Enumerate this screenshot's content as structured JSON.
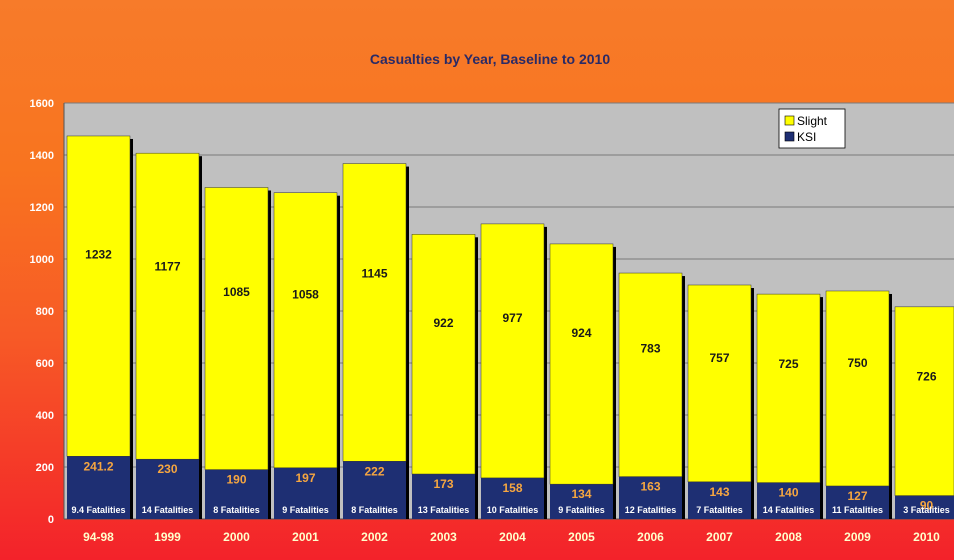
{
  "chart_data": {
    "type": "bar",
    "stacked": true,
    "title": "Casualties by Year, Baseline to 2010",
    "xlabel": "",
    "ylabel": "",
    "ylim": [
      0,
      1600
    ],
    "yticks": [
      0,
      200,
      400,
      600,
      800,
      1000,
      1200,
      1400,
      1600
    ],
    "grid": true,
    "legend_position": "top-right",
    "categories": [
      "94-98",
      "1999",
      "2000",
      "2001",
      "2002",
      "2003",
      "2004",
      "2005",
      "2006",
      "2007",
      "2008",
      "2009",
      "2010"
    ],
    "series": [
      {
        "name": "KSI",
        "color": "#1e2f73",
        "values": [
          241.2,
          230,
          190,
          197,
          222,
          173,
          158,
          134,
          163,
          143,
          140,
          127,
          90
        ],
        "labels": [
          "241.2",
          "230",
          "190",
          "197",
          "222",
          "173",
          "158",
          "134",
          "163",
          "143",
          "140",
          "127",
          "90"
        ]
      },
      {
        "name": "Slight",
        "color": "#ffff00",
        "values": [
          1232,
          1177,
          1085,
          1058,
          1145,
          922,
          977,
          924,
          783,
          757,
          725,
          750,
          726
        ],
        "labels": [
          "1232",
          "1177",
          "1085",
          "1058",
          "1145",
          "922",
          "977",
          "924",
          "783",
          "757",
          "725",
          "750",
          "726"
        ]
      }
    ],
    "annotations": [
      "9.4 Fatalities",
      "14 Fatalities",
      "8 Fatalities",
      "9 Fatalities",
      "8 Fatalities",
      "13 Fatalities",
      "10 Fatalities",
      "9 Fatalities",
      "12 Fatalities",
      "7 Fatalities",
      "14 Fatalities",
      "11 Fatalities",
      "3 Fatalities"
    ],
    "legend": [
      "Slight",
      "KSI"
    ],
    "colors": {
      "background_top": "#f77b2a",
      "background_bottom": "#f3222a",
      "plot_area": "#c0c0c0",
      "gridline": "#7a7a7a"
    }
  }
}
